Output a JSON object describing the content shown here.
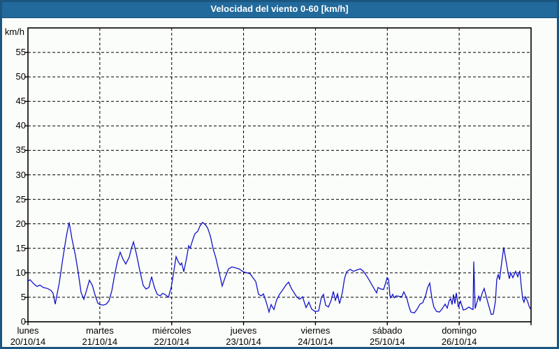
{
  "window": {
    "title": "Velocidad del viento 0-60 [km/h]"
  },
  "chart": {
    "unit_label": "km/h",
    "colors": {
      "titlebar": "#226a9b",
      "frame_border": "#1a567f",
      "background": "#fbfdfa",
      "plot_border": "#000000",
      "grid": "#000000",
      "line": "#1212c8",
      "text": "#000000",
      "title_text": "#ffffff"
    },
    "y_axis": {
      "min": 0,
      "max": 60,
      "tick_step": 5,
      "ticks": [
        0,
        5,
        10,
        15,
        20,
        25,
        30,
        35,
        40,
        45,
        50,
        55
      ]
    },
    "x_axis": {
      "days": [
        {
          "name": "lunes",
          "date": "20/10/14"
        },
        {
          "name": "martes",
          "date": "21/10/14"
        },
        {
          "name": "miércoles",
          "date": "22/10/14"
        },
        {
          "name": "jueves",
          "date": "23/10/14"
        },
        {
          "name": "viernes",
          "date": "24/10/14"
        },
        {
          "name": "sábado",
          "date": "25/10/14"
        },
        {
          "name": "domingo",
          "date": "26/10/14"
        }
      ]
    }
  },
  "chart_data": {
    "type": "line",
    "title": "Velocidad del viento 0-60 [km/h]",
    "ylabel": "km/h",
    "ylim": [
      0,
      60
    ],
    "grid": "dashed, horizontal every 5 km/h, vertical at each day boundary",
    "legend": "none",
    "x_unit": "days since start of lunes 20/10/14 (0 to 7)",
    "series": [
      {
        "name": "Velocidad del viento",
        "points": [
          [
            0.0,
            8.3
          ],
          [
            0.029,
            8.6
          ],
          [
            0.078,
            7.8
          ],
          [
            0.126,
            7.2
          ],
          [
            0.165,
            7.5
          ],
          [
            0.214,
            7.0
          ],
          [
            0.272,
            6.8
          ],
          [
            0.321,
            6.4
          ],
          [
            0.35,
            5.8
          ],
          [
            0.379,
            3.6
          ],
          [
            0.437,
            8.0
          ],
          [
            0.486,
            13.0
          ],
          [
            0.535,
            17.5
          ],
          [
            0.574,
            20.3
          ],
          [
            0.612,
            17.0
          ],
          [
            0.661,
            13.5
          ],
          [
            0.7,
            10.0
          ],
          [
            0.739,
            6.0
          ],
          [
            0.778,
            4.6
          ],
          [
            0.817,
            6.5
          ],
          [
            0.856,
            8.5
          ],
          [
            0.894,
            7.5
          ],
          [
            0.933,
            5.5
          ],
          [
            0.972,
            3.8
          ],
          [
            1.001,
            3.5
          ],
          [
            1.05,
            3.4
          ],
          [
            1.089,
            3.6
          ],
          [
            1.128,
            4.3
          ],
          [
            1.167,
            6.3
          ],
          [
            1.206,
            9.5
          ],
          [
            1.244,
            12.3
          ],
          [
            1.283,
            14.2
          ],
          [
            1.322,
            12.8
          ],
          [
            1.361,
            11.8
          ],
          [
            1.41,
            13.2
          ],
          [
            1.439,
            15.0
          ],
          [
            1.468,
            16.3
          ],
          [
            1.507,
            14.0
          ],
          [
            1.556,
            10.5
          ],
          [
            1.604,
            7.4
          ],
          [
            1.643,
            6.7
          ],
          [
            1.682,
            7.0
          ],
          [
            1.721,
            9.2
          ],
          [
            1.76,
            7.0
          ],
          [
            1.799,
            5.6
          ],
          [
            1.838,
            5.3
          ],
          [
            1.876,
            5.8
          ],
          [
            1.915,
            5.5
          ],
          [
            1.954,
            5.0
          ],
          [
            1.993,
            7.0
          ],
          [
            2.032,
            10.5
          ],
          [
            2.061,
            13.3
          ],
          [
            2.09,
            12.3
          ],
          [
            2.119,
            11.6
          ],
          [
            2.139,
            12.0
          ],
          [
            2.168,
            10.2
          ],
          [
            2.207,
            13.0
          ],
          [
            2.236,
            15.5
          ],
          [
            2.256,
            15.0
          ],
          [
            2.294,
            16.8
          ],
          [
            2.324,
            18.0
          ],
          [
            2.363,
            18.5
          ],
          [
            2.392,
            19.5
          ],
          [
            2.431,
            20.3
          ],
          [
            2.469,
            19.8
          ],
          [
            2.499,
            19.2
          ],
          [
            2.538,
            17.5
          ],
          [
            2.576,
            14.9
          ],
          [
            2.615,
            13.0
          ],
          [
            2.654,
            10.5
          ],
          [
            2.703,
            7.3
          ],
          [
            2.742,
            9.0
          ],
          [
            2.79,
            10.8
          ],
          [
            2.839,
            11.2
          ],
          [
            2.888,
            11.0
          ],
          [
            2.936,
            10.8
          ],
          [
            2.995,
            10.2
          ],
          [
            3.043,
            10.0
          ],
          [
            3.092,
            9.8
          ],
          [
            3.131,
            9.0
          ],
          [
            3.17,
            8.2
          ],
          [
            3.208,
            5.6
          ],
          [
            3.247,
            5.3
          ],
          [
            3.276,
            5.7
          ],
          [
            3.315,
            4.0
          ],
          [
            3.354,
            2.0
          ],
          [
            3.383,
            3.5
          ],
          [
            3.422,
            2.5
          ],
          [
            3.461,
            4.5
          ],
          [
            3.5,
            5.6
          ],
          [
            3.549,
            6.6
          ],
          [
            3.588,
            7.5
          ],
          [
            3.626,
            8.1
          ],
          [
            3.665,
            6.8
          ],
          [
            3.704,
            5.9
          ],
          [
            3.743,
            5.0
          ],
          [
            3.782,
            4.6
          ],
          [
            3.821,
            5.1
          ],
          [
            3.869,
            2.9
          ],
          [
            3.908,
            4.0
          ],
          [
            3.947,
            2.6
          ],
          [
            3.996,
            2.1
          ],
          [
            4.044,
            2.2
          ],
          [
            4.083,
            5.0
          ],
          [
            4.112,
            5.6
          ],
          [
            4.142,
            3.4
          ],
          [
            4.181,
            3.0
          ],
          [
            4.219,
            4.4
          ],
          [
            4.249,
            6.2
          ],
          [
            4.278,
            4.4
          ],
          [
            4.307,
            5.7
          ],
          [
            4.336,
            3.7
          ],
          [
            4.375,
            6.0
          ],
          [
            4.404,
            8.8
          ],
          [
            4.433,
            10.2
          ],
          [
            4.482,
            10.7
          ],
          [
            4.53,
            10.3
          ],
          [
            4.579,
            10.6
          ],
          [
            4.628,
            10.8
          ],
          [
            4.667,
            10.3
          ],
          [
            4.706,
            9.5
          ],
          [
            4.744,
            8.6
          ],
          [
            4.783,
            7.6
          ],
          [
            4.822,
            6.6
          ],
          [
            4.851,
            5.9
          ],
          [
            4.871,
            7.0
          ],
          [
            4.91,
            6.7
          ],
          [
            4.949,
            6.6
          ],
          [
            4.978,
            8.0
          ],
          [
            4.997,
            9.0
          ],
          [
            5.017,
            8.7
          ],
          [
            5.036,
            5.4
          ],
          [
            5.046,
            4.9
          ],
          [
            5.075,
            5.6
          ],
          [
            5.094,
            4.9
          ],
          [
            5.124,
            5.3
          ],
          [
            5.162,
            5.2
          ],
          [
            5.201,
            5.1
          ],
          [
            5.23,
            6.1
          ],
          [
            5.269,
            4.9
          ],
          [
            5.298,
            3.3
          ],
          [
            5.327,
            2.0
          ],
          [
            5.376,
            1.8
          ],
          [
            5.415,
            2.6
          ],
          [
            5.454,
            3.6
          ],
          [
            5.493,
            3.9
          ],
          [
            5.532,
            5.3
          ],
          [
            5.561,
            7.0
          ],
          [
            5.59,
            7.9
          ],
          [
            5.619,
            4.9
          ],
          [
            5.648,
            3.0
          ],
          [
            5.687,
            2.1
          ],
          [
            5.726,
            2.0
          ],
          [
            5.765,
            2.7
          ],
          [
            5.804,
            3.6
          ],
          [
            5.833,
            2.8
          ],
          [
            5.862,
            4.3
          ],
          [
            5.882,
            4.7
          ],
          [
            5.901,
            3.5
          ],
          [
            5.921,
            5.6
          ],
          [
            5.94,
            3.7
          ],
          [
            5.96,
            5.9
          ],
          [
            5.989,
            3.0
          ],
          [
            6.018,
            4.2
          ],
          [
            6.057,
            2.4
          ],
          [
            6.096,
            2.6
          ],
          [
            6.135,
            3.0
          ],
          [
            6.174,
            2.6
          ],
          [
            6.193,
            2.5
          ],
          [
            6.203,
            12.3
          ],
          [
            6.222,
            2.7
          ],
          [
            6.271,
            5.2
          ],
          [
            6.29,
            4.3
          ],
          [
            6.319,
            5.8
          ],
          [
            6.348,
            6.8
          ],
          [
            6.378,
            5.1
          ],
          [
            6.407,
            3.5
          ],
          [
            6.446,
            1.5
          ],
          [
            6.475,
            1.6
          ],
          [
            6.504,
            4.2
          ],
          [
            6.523,
            8.6
          ],
          [
            6.543,
            9.7
          ],
          [
            6.562,
            8.6
          ],
          [
            6.591,
            12.0
          ],
          [
            6.62,
            15.2
          ],
          [
            6.65,
            12.6
          ],
          [
            6.679,
            10.1
          ],
          [
            6.698,
            8.8
          ],
          [
            6.717,
            10.0
          ],
          [
            6.747,
            9.0
          ],
          [
            6.785,
            10.3
          ],
          [
            6.815,
            9.2
          ],
          [
            6.844,
            10.4
          ],
          [
            6.863,
            7.4
          ],
          [
            6.883,
            4.7
          ],
          [
            6.902,
            4.0
          ],
          [
            6.922,
            5.1
          ],
          [
            6.951,
            4.2
          ],
          [
            6.97,
            3.3
          ],
          [
            6.99,
            2.6
          ]
        ]
      }
    ]
  }
}
